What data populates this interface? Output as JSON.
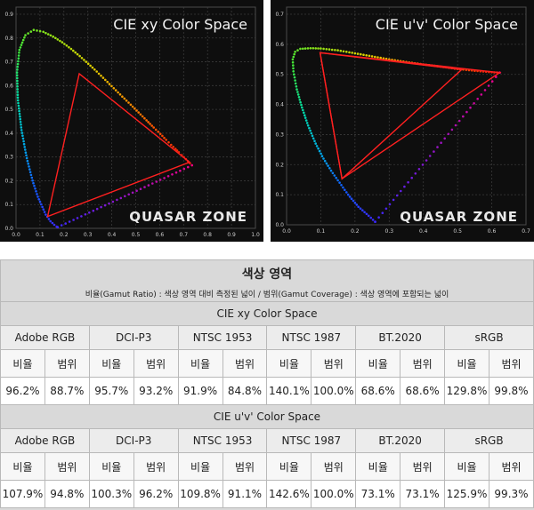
{
  "chart_data": [
    {
      "type": "scatter",
      "title": "CIE xy Color Space",
      "x_ticks": [
        "0.0",
        "0.1",
        "0.2",
        "0.3",
        "0.4",
        "0.5",
        "0.6",
        "0.7",
        "0.8",
        "0.9",
        "1.0"
      ],
      "y_ticks": [
        "0.0",
        "0.1",
        "0.2",
        "0.3",
        "0.4",
        "0.5",
        "0.6",
        "0.7",
        "0.8",
        "0.9"
      ],
      "xlim": [
        0,
        1.0
      ],
      "ylim": [
        0,
        0.9
      ],
      "grid": true,
      "locus": [
        [
          0.174,
          0.005
        ],
        [
          0.17,
          0.007
        ],
        [
          0.16,
          0.015
        ],
        [
          0.144,
          0.03
        ],
        [
          0.124,
          0.058
        ],
        [
          0.091,
          0.133
        ],
        [
          0.069,
          0.201
        ],
        [
          0.045,
          0.295
        ],
        [
          0.023,
          0.413
        ],
        [
          0.008,
          0.538
        ],
        [
          0.004,
          0.655
        ],
        [
          0.014,
          0.75
        ],
        [
          0.039,
          0.812
        ],
        [
          0.074,
          0.834
        ],
        [
          0.114,
          0.826
        ],
        [
          0.155,
          0.806
        ],
        [
          0.193,
          0.782
        ],
        [
          0.23,
          0.754
        ],
        [
          0.266,
          0.724
        ],
        [
          0.302,
          0.692
        ],
        [
          0.337,
          0.659
        ],
        [
          0.373,
          0.624
        ],
        [
          0.408,
          0.589
        ],
        [
          0.444,
          0.554
        ],
        [
          0.479,
          0.52
        ],
        [
          0.512,
          0.487
        ],
        [
          0.545,
          0.454
        ],
        [
          0.575,
          0.424
        ],
        [
          0.603,
          0.397
        ],
        [
          0.627,
          0.372
        ],
        [
          0.648,
          0.351
        ],
        [
          0.666,
          0.334
        ],
        [
          0.68,
          0.32
        ],
        [
          0.692,
          0.308
        ],
        [
          0.735,
          0.265
        ]
      ],
      "gamut": [
        [
          0.264,
          0.65
        ],
        [
          0.725,
          0.278
        ],
        [
          0.132,
          0.05
        ]
      ]
    },
    {
      "type": "scatter",
      "title": "CIE u'v' Color Space",
      "x_ticks": [
        "0.0",
        "0.1",
        "0.2",
        "0.3",
        "0.4",
        "0.5",
        "0.6",
        "0.7"
      ],
      "y_ticks": [
        "0.0",
        "0.1",
        "0.2",
        "0.3",
        "0.4",
        "0.5",
        "0.6",
        "0.7"
      ],
      "xlim": [
        0,
        0.7
      ],
      "ylim": [
        0,
        0.7
      ],
      "grid": true,
      "locus": [
        [
          0.259,
          0.01
        ],
        [
          0.24,
          0.03
        ],
        [
          0.21,
          0.06
        ],
        [
          0.18,
          0.1
        ],
        [
          0.155,
          0.14
        ],
        [
          0.13,
          0.18
        ],
        [
          0.108,
          0.22
        ],
        [
          0.085,
          0.27
        ],
        [
          0.063,
          0.33
        ],
        [
          0.045,
          0.39
        ],
        [
          0.03,
          0.45
        ],
        [
          0.02,
          0.51
        ],
        [
          0.018,
          0.55
        ],
        [
          0.025,
          0.575
        ],
        [
          0.04,
          0.585
        ],
        [
          0.07,
          0.587
        ],
        [
          0.1,
          0.586
        ],
        [
          0.15,
          0.58
        ],
        [
          0.2,
          0.57
        ],
        [
          0.25,
          0.56
        ],
        [
          0.3,
          0.55
        ],
        [
          0.35,
          0.541
        ],
        [
          0.4,
          0.533
        ],
        [
          0.45,
          0.526
        ],
        [
          0.5,
          0.518
        ],
        [
          0.55,
          0.512
        ],
        [
          0.6,
          0.507
        ],
        [
          0.623,
          0.506
        ]
      ],
      "gamut": [
        [
          0.098,
          0.572
        ],
        [
          0.512,
          0.516
        ],
        [
          0.162,
          0.153
        ]
      ],
      "reference_triangle": [
        [
          0.098,
          0.572
        ],
        [
          0.623,
          0.506
        ],
        [
          0.162,
          0.153
        ]
      ]
    }
  ],
  "logo_text": "QUASAR ZONE",
  "table": {
    "title": "색상 영역",
    "subtitle": "비율(Gamut Ratio) : 색상 영역 대비 측정된 넓이 / 범위(Gamut Coverage) : 색상 영역에 포함되는 넓이",
    "ratio_label": "비율",
    "coverage_label": "범위",
    "sections": [
      {
        "name": "CIE xy Color Space",
        "standards": [
          "Adobe RGB",
          "DCI-P3",
          "NTSC 1953",
          "NTSC 1987",
          "BT.2020",
          "sRGB"
        ],
        "values": [
          "96.2%",
          "88.7%",
          "95.7%",
          "93.2%",
          "91.9%",
          "84.8%",
          "140.1%",
          "100.0%",
          "68.6%",
          "68.6%",
          "129.8%",
          "99.8%"
        ]
      },
      {
        "name": "CIE u'v' Color Space",
        "standards": [
          "Adobe RGB",
          "DCI-P3",
          "NTSC 1953",
          "NTSC 1987",
          "BT.2020",
          "sRGB"
        ],
        "values": [
          "107.9%",
          "94.8%",
          "100.3%",
          "96.2%",
          "109.8%",
          "91.1%",
          "142.6%",
          "100.0%",
          "73.1%",
          "73.1%",
          "125.9%",
          "99.3%"
        ]
      }
    ]
  }
}
